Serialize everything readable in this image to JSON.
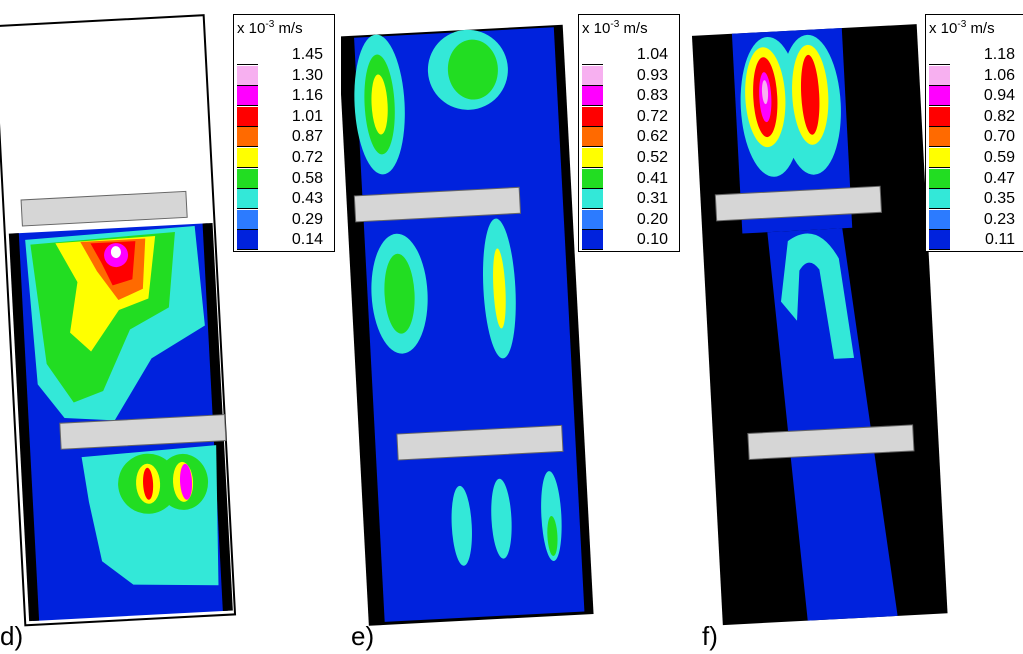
{
  "panels": [
    {
      "label": "d)",
      "unit": {
        "prefix": "x 10",
        "exp": "-3",
        "suffix": "m/s"
      },
      "levels": [
        "1.45",
        "1.30",
        "1.16",
        "1.01",
        "0.87",
        "0.72",
        "0.58",
        "0.43",
        "0.29",
        "0.14"
      ]
    },
    {
      "label": "e)",
      "unit": {
        "prefix": "x 10",
        "exp": "-3",
        "suffix": "m/s"
      },
      "levels": [
        "1.04",
        "0.93",
        "0.83",
        "0.72",
        "0.62",
        "0.52",
        "0.41",
        "0.31",
        "0.20",
        "0.10"
      ]
    },
    {
      "label": "f)",
      "unit": {
        "prefix": "x 10",
        "exp": "-3",
        "suffix": "m/s"
      },
      "levels": [
        "1.18",
        "1.06",
        "0.94",
        "0.82",
        "0.70",
        "0.59",
        "0.47",
        "0.35",
        "0.23",
        "0.11"
      ]
    }
  ],
  "colors": {
    "scale": [
      "#ffffff",
      "#f7b0f0",
      "#ff00ff",
      "#ff0000",
      "#ff6a00",
      "#ffff00",
      "#22dd22",
      "#33e8d8",
      "#2c7bff",
      "#0022dd"
    ],
    "background": "#000000",
    "baffle": "#d6d6d6"
  }
}
